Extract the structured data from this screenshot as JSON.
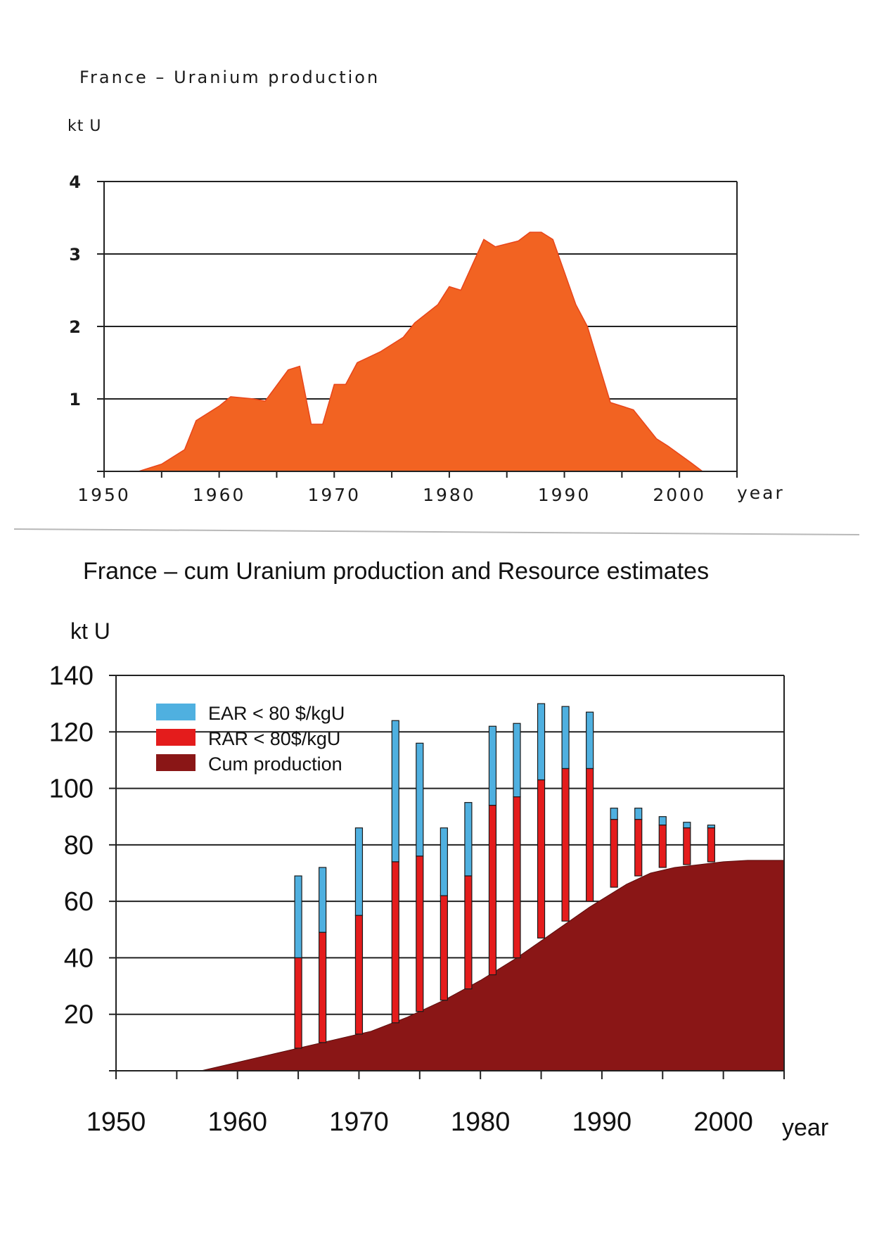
{
  "chart_data": [
    {
      "type": "area",
      "title": "France – Uranium production",
      "ylabel": "kt U",
      "xlabel": "year",
      "xlim": [
        1950,
        2005
      ],
      "ylim": [
        0,
        4
      ],
      "yticks": [
        "1",
        "2",
        "3",
        "4"
      ],
      "xticks": [
        "1950",
        "1960",
        "1970",
        "1980",
        "1990",
        "2000"
      ],
      "grid": true,
      "colors": {
        "fill": "#f26322",
        "edge": "#e8451a"
      },
      "x": [
        1953,
        1955,
        1957,
        1958,
        1960,
        1961,
        1963,
        1964,
        1966,
        1967,
        1968,
        1969,
        1970,
        1971,
        1972,
        1974,
        1976,
        1977,
        1979,
        1980,
        1981,
        1983,
        1984,
        1986,
        1987,
        1988,
        1989,
        1991,
        1992,
        1994,
        1996,
        1998,
        1999,
        2001,
        2002
      ],
      "values": [
        0,
        0.1,
        0.3,
        0.7,
        0.9,
        1.03,
        1.0,
        0.97,
        1.4,
        1.45,
        0.65,
        0.65,
        1.2,
        1.2,
        1.5,
        1.65,
        1.85,
        2.05,
        2.3,
        2.55,
        2.5,
        3.2,
        3.1,
        3.18,
        3.3,
        3.3,
        3.2,
        2.3,
        2.0,
        0.95,
        0.85,
        0.45,
        0.35,
        0.12,
        0
      ]
    },
    {
      "type": "bar",
      "title": "France – cum Uranium production and Resource estimates",
      "ylabel": "kt U",
      "xlabel": "year",
      "xlim": [
        1950,
        2005
      ],
      "ylim": [
        0,
        140
      ],
      "yticks": [
        "20",
        "40",
        "60",
        "80",
        "100",
        "120",
        "140"
      ],
      "xticks": [
        "1950",
        "1960",
        "1970",
        "1980",
        "1990",
        "2000"
      ],
      "grid": true,
      "legend": "top-left",
      "colors": {
        "ear": "#4fb0e0",
        "rar": "#e41c1c",
        "cum": "#8a1616"
      },
      "legend_entries": [
        "EAR < 80 $/kgU",
        "RAR < 80$/kgU",
        "Cum production"
      ],
      "cum_production": {
        "name": "Cum production",
        "x": [
          1957,
          1960,
          1963,
          1965,
          1968,
          1971,
          1974,
          1977,
          1980,
          1983,
          1986,
          1989,
          1992,
          1994,
          1996,
          1998,
          2000,
          2002,
          2005
        ],
        "values": [
          0,
          3,
          6,
          8,
          11,
          14,
          19,
          25,
          32,
          40,
          49,
          58,
          66,
          70,
          72,
          73,
          74,
          74.5,
          74.5
        ]
      },
      "resource_years": [
        1965,
        1967,
        1970,
        1973,
        1975,
        1977,
        1979,
        1981,
        1983,
        1985,
        1987,
        1989,
        1991,
        1993,
        1995,
        1997,
        1999
      ],
      "series": [
        {
          "name": "Cum production",
          "values": [
            8,
            10,
            13,
            17,
            21,
            25,
            29,
            34,
            40,
            47,
            53,
            60,
            65,
            69,
            72,
            73,
            74
          ]
        },
        {
          "name": "RAR < 80$/kgU",
          "values": [
            40,
            49,
            55,
            74,
            76,
            62,
            69,
            94,
            97,
            103,
            107,
            107,
            89,
            89,
            87,
            86,
            86
          ]
        },
        {
          "name": "EAR < 80 $/kgU",
          "values": [
            69,
            72,
            86,
            124,
            116,
            86,
            95,
            122,
            123,
            130,
            129,
            127,
            93,
            93,
            90,
            88,
            87
          ]
        }
      ]
    }
  ]
}
